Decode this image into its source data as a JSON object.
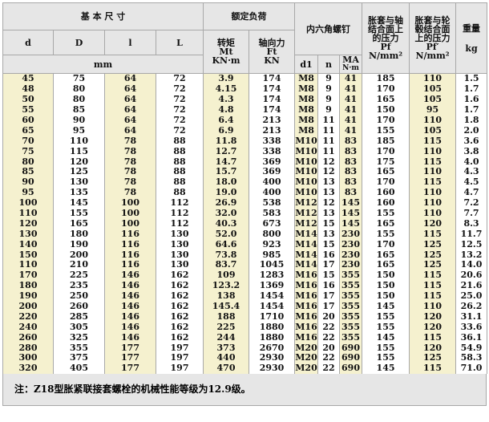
{
  "header": {
    "basic_dims": "基 本 尺 寸",
    "rated_load": "额定负荷",
    "screw": "内六角螺钉",
    "pf_title": "胀套与轴结合面上的压力",
    "pf2_title": "胀套与轮毂结合面上的压力",
    "weight": "重量",
    "d": "d",
    "D": "D",
    "l": "l",
    "L": "L",
    "torque": "转矩",
    "torque_sym": "Mt",
    "torque_unit": "KN·m",
    "axial": "轴向力",
    "axial_sym": "Ft",
    "axial_unit": "KN",
    "mm": "mm",
    "d1": "d1",
    "n": "n",
    "ma": "MA",
    "ma_unit": "N·m",
    "pf_sym": "Pf",
    "pf_unit": "N/mm²",
    "pf2_sym": "Pf′",
    "pf2_unit": "N/mm²",
    "kg": "kg"
  },
  "rows": [
    [
      "45",
      "75",
      "64",
      "72",
      "3.9",
      "174",
      "M8",
      "9",
      "41",
      "185",
      "110",
      "1.5"
    ],
    [
      "48",
      "80",
      "64",
      "72",
      "4.15",
      "174",
      "M8",
      "9",
      "41",
      "170",
      "105",
      "1.7"
    ],
    [
      "50",
      "80",
      "64",
      "72",
      "4.3",
      "174",
      "M8",
      "9",
      "41",
      "165",
      "105",
      "1.6"
    ],
    [
      "55",
      "85",
      "64",
      "72",
      "4.8",
      "174",
      "M8",
      "9",
      "41",
      "150",
      "95",
      "1.7"
    ],
    [
      "60",
      "90",
      "64",
      "72",
      "6.4",
      "213",
      "M8",
      "11",
      "41",
      "170",
      "110",
      "1.8"
    ],
    [
      "65",
      "95",
      "64",
      "72",
      "6.9",
      "213",
      "M8",
      "11",
      "41",
      "155",
      "105",
      "2.0"
    ],
    [
      "70",
      "110",
      "78",
      "88",
      "11.8",
      "338",
      "M10",
      "11",
      "83",
      "185",
      "115",
      "3.6"
    ],
    [
      "75",
      "115",
      "78",
      "88",
      "12.7",
      "338",
      "M10",
      "11",
      "83",
      "170",
      "110",
      "3.8"
    ],
    [
      "80",
      "120",
      "78",
      "88",
      "14.7",
      "369",
      "M10",
      "12",
      "83",
      "175",
      "115",
      "4.0"
    ],
    [
      "85",
      "125",
      "78",
      "88",
      "15.7",
      "369",
      "M10",
      "12",
      "83",
      "165",
      "110",
      "4.3"
    ],
    [
      "90",
      "130",
      "78",
      "88",
      "18.0",
      "400",
      "M10",
      "13",
      "83",
      "170",
      "115",
      "4.5"
    ],
    [
      "95",
      "135",
      "78",
      "88",
      "19.0",
      "400",
      "M10",
      "13",
      "83",
      "160",
      "110",
      "4.7"
    ],
    [
      "100",
      "145",
      "100",
      "112",
      "26.9",
      "538",
      "M12",
      "12",
      "145",
      "160",
      "110",
      "7.2"
    ],
    [
      "110",
      "155",
      "100",
      "112",
      "32.0",
      "583",
      "M12",
      "13",
      "145",
      "155",
      "110",
      "7.7"
    ],
    [
      "120",
      "165",
      "100",
      "112",
      "40.3",
      "673",
      "M12",
      "15",
      "145",
      "165",
      "120",
      "8.3"
    ],
    [
      "130",
      "180",
      "116",
      "130",
      "52.0",
      "800",
      "M14",
      "13",
      "230",
      "155",
      "115",
      "11.7"
    ],
    [
      "140",
      "190",
      "116",
      "130",
      "64.6",
      "923",
      "M14",
      "15",
      "230",
      "170",
      "125",
      "12.5"
    ],
    [
      "150",
      "200",
      "116",
      "130",
      "73.8",
      "985",
      "M14",
      "16",
      "230",
      "165",
      "125",
      "13.2"
    ],
    [
      "110",
      "210",
      "116",
      "130",
      "83.7",
      "1045",
      "M14",
      "17",
      "230",
      "165",
      "125",
      "14.0"
    ],
    [
      "170",
      "225",
      "146",
      "162",
      "109",
      "1283",
      "M16",
      "15",
      "355",
      "150",
      "115",
      "20.6"
    ],
    [
      "180",
      "235",
      "146",
      "162",
      "123.2",
      "1369",
      "M16",
      "16",
      "355",
      "150",
      "115",
      "21.6"
    ],
    [
      "190",
      "250",
      "146",
      "162",
      "138",
      "1454",
      "M16",
      "17",
      "355",
      "150",
      "115",
      "25.0"
    ],
    [
      "200",
      "260",
      "146",
      "162",
      "145.4",
      "1454",
      "M16",
      "17",
      "355",
      "145",
      "110",
      "26.2"
    ],
    [
      "220",
      "285",
      "146",
      "162",
      "188",
      "1710",
      "M16",
      "20",
      "355",
      "155",
      "120",
      "31.1"
    ],
    [
      "240",
      "305",
      "146",
      "162",
      "225",
      "1880",
      "M16",
      "22",
      "355",
      "155",
      "120",
      "33.6"
    ],
    [
      "260",
      "325",
      "146",
      "162",
      "244",
      "1880",
      "M16",
      "22",
      "355",
      "145",
      "115",
      "36.1"
    ],
    [
      "280",
      "355",
      "177",
      "197",
      "373",
      "2670",
      "M20",
      "20",
      "690",
      "155",
      "120",
      "54.9"
    ],
    [
      "300",
      "375",
      "177",
      "197",
      "440",
      "2930",
      "M20",
      "22",
      "690",
      "155",
      "125",
      "58.3"
    ],
    [
      "320",
      "405",
      "177",
      "197",
      "470",
      "2930",
      "M20",
      "22",
      "690",
      "145",
      "115",
      "71.0"
    ]
  ],
  "note": "注：Z18型胀紧联接套螺栓的机械性能等级为12.9级。",
  "colors": {
    "shade": "#f5f1cf",
    "header": "#e6e6e6"
  }
}
